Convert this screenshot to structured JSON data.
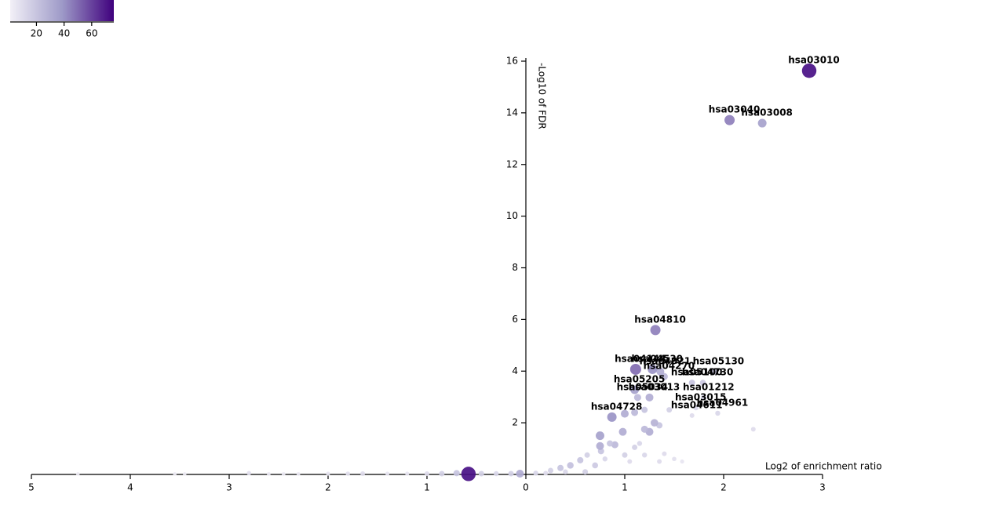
{
  "chart_data": {
    "type": "scatter",
    "x_label": "Log2 of enrichment ratio",
    "y_label": "-Log10 of FDR",
    "xlim": [
      -5,
      3
    ],
    "ylim": [
      0,
      16
    ],
    "xticks": [
      {
        "value": -5,
        "label": "5"
      },
      {
        "value": -4,
        "label": "4"
      },
      {
        "value": -3,
        "label": "3"
      },
      {
        "value": -2,
        "label": "2"
      },
      {
        "value": -1,
        "label": "1"
      },
      0,
      1,
      2,
      3
    ],
    "yticks": [
      2,
      4,
      6,
      8,
      10,
      12,
      14,
      16
    ],
    "colorlim": [
      1,
      76
    ],
    "colorticks": [
      20,
      40,
      60
    ],
    "colorscale": [
      "#f2f0f7",
      "#9e9ac8",
      "#3f007d"
    ],
    "x": [
      2.865,
      2.06,
      2.39,
      1.31,
      1.28,
      1.11,
      1.36,
      1.9,
      1.68,
      1.4,
      1.79,
      1.1,
      1.25,
      1.8,
      1.13,
      1.94,
      0.87,
      1.72,
      1.68,
      -4.53,
      -3.55,
      -3.45,
      -2.8,
      -2.6,
      -2.45,
      -2.3,
      -2.0,
      -1.8,
      -1.65,
      -1.4,
      -1.2,
      -1.0,
      -0.85,
      -0.7,
      -0.58,
      -0.45,
      -0.3,
      -0.15,
      -0.06,
      0.1,
      0.25,
      0.35,
      0.45,
      0.55,
      0.62,
      0.7,
      0.75,
      0.76,
      0.8,
      0.85,
      0.9,
      0.75,
      0.98,
      1.0,
      1.05,
      1.1,
      1.15,
      1.2,
      1.25,
      1.3,
      1.35,
      1.2,
      1.4,
      1.35,
      1.5,
      1.58,
      2.3,
      1.0,
      1.1,
      1.2,
      1.45,
      0.6,
      0.4,
      0.2
    ],
    "y": [
      15.63,
      13.72,
      13.6,
      5.59,
      4.07,
      4.07,
      3.98,
      3.98,
      3.55,
      3.79,
      3.55,
      3.28,
      2.98,
      2.98,
      2.98,
      2.37,
      2.22,
      2.58,
      2.28,
      0.02,
      0.02,
      0.02,
      0.05,
      0.02,
      0.02,
      0.02,
      0.03,
      0.03,
      0.03,
      0.03,
      0.03,
      0.03,
      0.03,
      0.05,
      0.02,
      0.03,
      0.03,
      0.03,
      0.03,
      0.05,
      0.15,
      0.25,
      0.35,
      0.55,
      0.75,
      0.35,
      1.1,
      0.9,
      0.6,
      1.2,
      1.15,
      1.5,
      1.65,
      0.75,
      0.5,
      1.05,
      1.2,
      1.75,
      1.65,
      2.0,
      1.9,
      0.75,
      0.8,
      0.5,
      0.6,
      0.5,
      1.75,
      2.35,
      2.4,
      2.5,
      2.5,
      0.1,
      0.1,
      0.05
    ],
    "sizes": [
      72,
      45,
      35,
      45,
      40,
      50,
      30,
      20,
      20,
      25,
      18,
      35,
      30,
      15,
      25,
      12,
      40,
      12,
      10,
      3,
      3,
      3,
      8,
      4,
      4,
      4,
      6,
      8,
      10,
      6,
      6,
      10,
      15,
      20,
      72,
      15,
      12,
      15,
      30,
      12,
      15,
      20,
      22,
      20,
      15,
      18,
      30,
      20,
      12,
      20,
      25,
      35,
      30,
      15,
      10,
      15,
      12,
      25,
      30,
      28,
      20,
      12,
      10,
      10,
      8,
      6,
      10,
      30,
      25,
      20,
      15,
      15,
      12,
      10
    ],
    "labels": [
      "hsa03010",
      "hsa03040",
      "hsa03008",
      "hsa04810",
      "hsa04530",
      "hsa04144",
      "hsa04921",
      "hsa05130",
      "hsa05100",
      "hsa04270",
      "hsa04730",
      "hsa05205",
      "hsa03013",
      "hsa01212",
      "hsa05034",
      "hsa04961",
      "hsa04728",
      "hsa03015",
      "hsa04611",
      null,
      null,
      null,
      null,
      null,
      null,
      null,
      null,
      null,
      null,
      null,
      null,
      null,
      null,
      null,
      null,
      null,
      null,
      null,
      null,
      null,
      null,
      null,
      null,
      null,
      null,
      null,
      null,
      null,
      null,
      null,
      null,
      null,
      null,
      null,
      null,
      null,
      null,
      null,
      null,
      null,
      null,
      null,
      null,
      null,
      null,
      null,
      null,
      null,
      null,
      null,
      null,
      null,
      null,
      null
    ]
  }
}
